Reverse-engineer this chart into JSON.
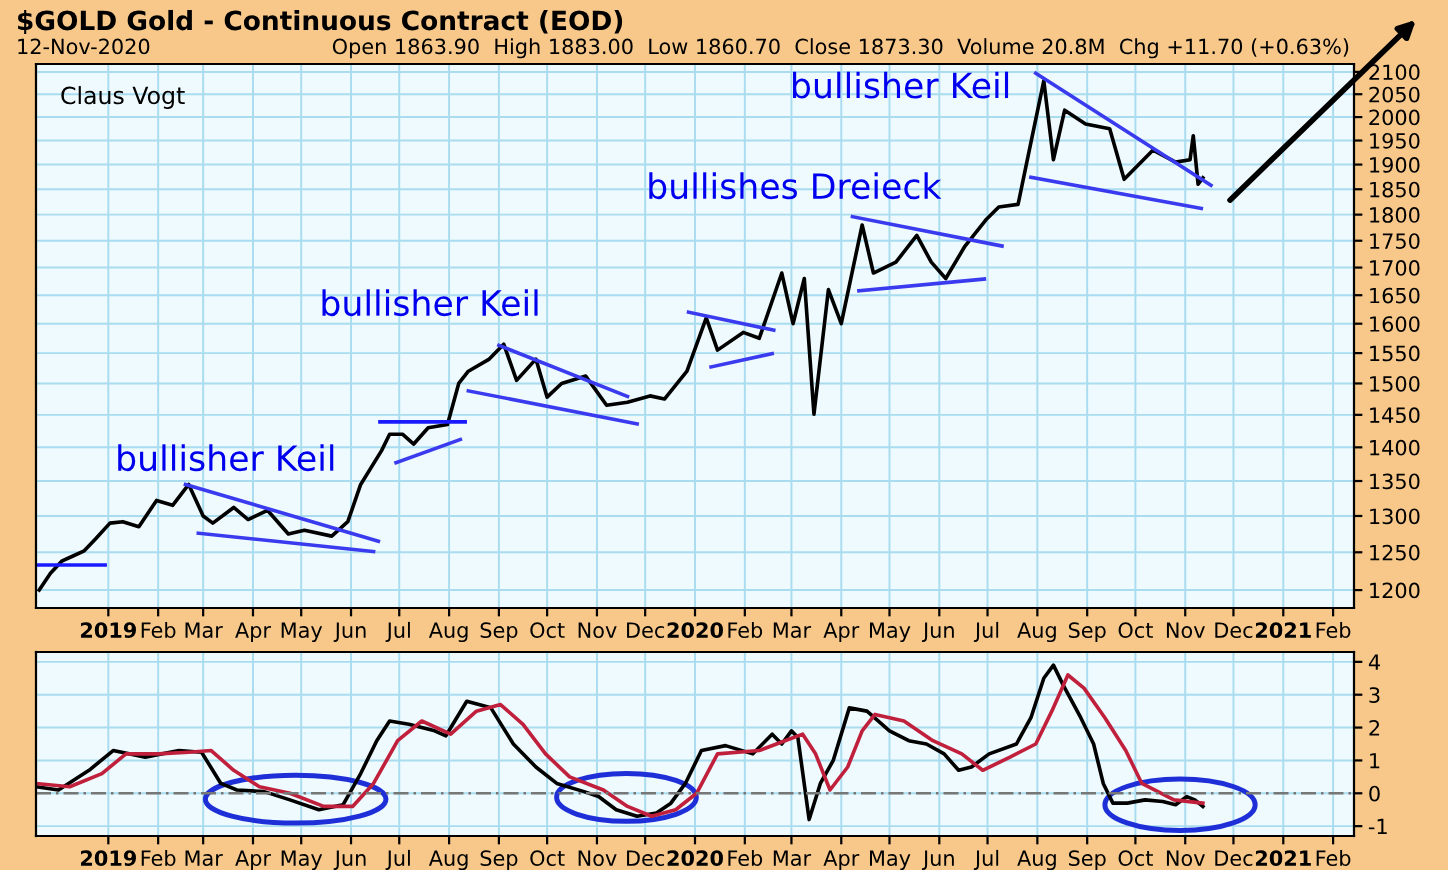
{
  "chart_data": [
    {
      "type": "line",
      "title": "$GOLD Gold - Continuous Contract (EOD)",
      "subtitle": "12-Nov-2020",
      "annotations": [
        "Open 1863.90  High 1883.00  Low 1860.70  Close 1873.30  Volume 20.8M  Chg +11.70 (+0.63%)",
        "Claus Vogt",
        "bullisher Keil",
        "bullisher Keil",
        "bullishes Dreieck",
        "bullisher Keil"
      ],
      "log": "y",
      "grid": true,
      "legend": false,
      "line_style": "solid",
      "marker": "none",
      "xlim": [
        "2018-11-17",
        "2021-02-14"
      ],
      "xticks": [
        {
          "value": "2019-01",
          "label": "2019"
        },
        {
          "value": "2019-02",
          "label": "Feb"
        },
        {
          "value": "2019-03",
          "label": "Mar"
        },
        {
          "value": "2019-04",
          "label": "Apr"
        },
        {
          "value": "2019-05",
          "label": "May"
        },
        {
          "value": "2019-06",
          "label": "Jun"
        },
        {
          "value": "2019-07",
          "label": "Jul"
        },
        {
          "value": "2019-08",
          "label": "Aug"
        },
        {
          "value": "2019-09",
          "label": "Sep"
        },
        {
          "value": "2019-10",
          "label": "Oct"
        },
        {
          "value": "2019-11",
          "label": "Nov"
        },
        {
          "value": "2019-12",
          "label": "Dec"
        },
        {
          "value": "2020-01",
          "label": "2020"
        },
        {
          "value": "2020-02",
          "label": "Feb"
        },
        {
          "value": "2020-03",
          "label": "Mar"
        },
        {
          "value": "2020-04",
          "label": "Apr"
        },
        {
          "value": "2020-05",
          "label": "May"
        },
        {
          "value": "2020-06",
          "label": "Jun"
        },
        {
          "value": "2020-07",
          "label": "Jul"
        },
        {
          "value": "2020-08",
          "label": "Aug"
        },
        {
          "value": "2020-09",
          "label": "Sep"
        },
        {
          "value": "2020-10",
          "label": "Oct"
        },
        {
          "value": "2020-11",
          "label": "Nov"
        },
        {
          "value": "2020-12",
          "label": "Dec"
        },
        {
          "value": "2021-01",
          "label": "2021"
        },
        {
          "value": "2021-02",
          "label": "Feb"
        }
      ],
      "ylim": [
        1177,
        2118
      ],
      "yticks": [
        1200,
        1250,
        1300,
        1350,
        1400,
        1450,
        1500,
        1550,
        1600,
        1650,
        1700,
        1750,
        1800,
        1850,
        1900,
        1950,
        2000,
        2050,
        2100
      ],
      "series": [
        {
          "color": "#000000",
          "x": [
            "2018-11-19",
            "2018-11-26",
            "2018-12-03",
            "2018-12-10",
            "2018-12-17",
            "2018-12-24",
            "2019-01-02",
            "2019-01-10",
            "2019-01-20",
            "2019-01-31",
            "2019-02-10",
            "2019-02-20",
            "2019-03-01",
            "2019-03-07",
            "2019-03-20",
            "2019-03-29",
            "2019-04-10",
            "2019-04-23",
            "2019-05-03",
            "2019-05-20",
            "2019-05-30",
            "2019-06-07",
            "2019-06-20",
            "2019-06-25",
            "2019-07-03",
            "2019-07-10",
            "2019-07-19",
            "2019-07-31",
            "2019-08-07",
            "2019-08-13",
            "2019-08-26",
            "2019-09-04",
            "2019-09-12",
            "2019-09-24",
            "2019-10-01",
            "2019-10-10",
            "2019-10-25",
            "2019-11-07",
            "2019-11-20",
            "2019-12-04",
            "2019-12-13",
            "2019-12-27",
            "2020-01-08",
            "2020-01-15",
            "2020-01-31",
            "2020-02-10",
            "2020-02-24",
            "2020-03-02",
            "2020-03-09",
            "2020-03-15",
            "2020-03-24",
            "2020-04-01",
            "2020-04-14",
            "2020-04-21",
            "2020-05-05",
            "2020-05-18",
            "2020-05-27",
            "2020-06-05",
            "2020-06-17",
            "2020-06-30",
            "2020-07-08",
            "2020-07-20",
            "2020-07-27",
            "2020-08-05",
            "2020-08-11",
            "2020-08-18",
            "2020-08-31",
            "2020-09-15",
            "2020-09-24",
            "2020-10-12",
            "2020-10-26",
            "2020-11-04",
            "2020-11-06",
            "2020-11-09",
            "2020-11-12"
          ],
          "values": [
            1200,
            1222,
            1238,
            1245,
            1252,
            1268,
            1290,
            1292,
            1285,
            1322,
            1315,
            1345,
            1300,
            1290,
            1312,
            1295,
            1308,
            1275,
            1280,
            1272,
            1292,
            1345,
            1395,
            1420,
            1420,
            1405,
            1430,
            1435,
            1500,
            1520,
            1540,
            1565,
            1505,
            1540,
            1478,
            1500,
            1512,
            1465,
            1470,
            1480,
            1475,
            1520,
            1610,
            1555,
            1585,
            1575,
            1690,
            1600,
            1680,
            1451,
            1660,
            1600,
            1780,
            1690,
            1710,
            1760,
            1710,
            1680,
            1740,
            1790,
            1815,
            1820,
            1930,
            2080,
            1910,
            2015,
            1985,
            1975,
            1870,
            1930,
            1905,
            1910,
            1960,
            1860,
            1873
          ]
        },
        {
          "color": "#1a1aff",
          "x": [
            "2018-11-17",
            "2018-12-30"
          ],
          "values": [
            1233,
            1233
          ]
        },
        {
          "color": "#3a3aee",
          "x": [
            "2019-02-18",
            "2019-06-18"
          ],
          "values": [
            1345,
            1265
          ]
        },
        {
          "color": "#3a3aee",
          "x": [
            "2019-02-26",
            "2019-06-15"
          ],
          "values": [
            1276,
            1251
          ]
        },
        {
          "color": "#1a1aff",
          "x": [
            "2019-06-19",
            "2019-08-11"
          ],
          "values": [
            1439,
            1439
          ]
        },
        {
          "color": "#3a3aee",
          "x": [
            "2019-06-29",
            "2019-08-08"
          ],
          "values": [
            1377,
            1412
          ]
        },
        {
          "color": "#3a3aee",
          "x": [
            "2019-09-01",
            "2019-11-20"
          ],
          "values": [
            1563,
            1479
          ]
        },
        {
          "color": "#3a3aee",
          "x": [
            "2019-08-13",
            "2019-11-26"
          ],
          "values": [
            1488,
            1436
          ]
        },
        {
          "color": "#3a3aee",
          "x": [
            "2019-12-28",
            "2020-02-19"
          ],
          "values": [
            1620,
            1589
          ]
        },
        {
          "color": "#3a3aee",
          "x": [
            "2020-01-11",
            "2020-02-18"
          ],
          "values": [
            1527,
            1549
          ]
        },
        {
          "color": "#3a3aee",
          "x": [
            "2020-04-08",
            "2020-07-10"
          ],
          "values": [
            1796,
            1740
          ]
        },
        {
          "color": "#3a3aee",
          "x": [
            "2020-04-12",
            "2020-06-29"
          ],
          "values": [
            1658,
            1679
          ]
        },
        {
          "color": "#3a3aee",
          "x": [
            "2020-07-31",
            "2020-11-17"
          ],
          "values": [
            2097,
            1858
          ]
        },
        {
          "color": "#3a3aee",
          "x": [
            "2020-07-28",
            "2020-11-11"
          ],
          "values": [
            1874,
            1812
          ]
        }
      ]
    },
    {
      "type": "line",
      "grid": true,
      "legend": false,
      "line_style": "solid",
      "marker": "none",
      "xlim": [
        "2018-11-17",
        "2021-02-14"
      ],
      "xticks": [
        {
          "value": "2019-01",
          "label": "2019"
        },
        {
          "value": "2019-02",
          "label": "Feb"
        },
        {
          "value": "2019-03",
          "label": "Mar"
        },
        {
          "value": "2019-04",
          "label": "Apr"
        },
        {
          "value": "2019-05",
          "label": "May"
        },
        {
          "value": "2019-06",
          "label": "Jun"
        },
        {
          "value": "2019-07",
          "label": "Jul"
        },
        {
          "value": "2019-08",
          "label": "Aug"
        },
        {
          "value": "2019-09",
          "label": "Sep"
        },
        {
          "value": "2019-10",
          "label": "Oct"
        },
        {
          "value": "2019-11",
          "label": "Nov"
        },
        {
          "value": "2019-12",
          "label": "Dec"
        },
        {
          "value": "2020-01",
          "label": "2020"
        },
        {
          "value": "2020-02",
          "label": "Feb"
        },
        {
          "value": "2020-03",
          "label": "Mar"
        },
        {
          "value": "2020-04",
          "label": "Apr"
        },
        {
          "value": "2020-05",
          "label": "May"
        },
        {
          "value": "2020-06",
          "label": "Jun"
        },
        {
          "value": "2020-07",
          "label": "Jul"
        },
        {
          "value": "2020-08",
          "label": "Aug"
        },
        {
          "value": "2020-09",
          "label": "Sep"
        },
        {
          "value": "2020-10",
          "label": "Oct"
        },
        {
          "value": "2020-11",
          "label": "Nov"
        },
        {
          "value": "2020-12",
          "label": "Dec"
        },
        {
          "value": "2021-01",
          "label": "2021"
        },
        {
          "value": "2021-02",
          "label": "Feb"
        }
      ],
      "ylim": [
        -1.3,
        4.3
      ],
      "yticks": [
        -1,
        0,
        1,
        2,
        3,
        4
      ],
      "ref_lines": [
        {
          "axis": "y",
          "value": 0,
          "color": "#777777",
          "line_style": "dashed"
        }
      ],
      "series": [
        {
          "color": "#000000",
          "x": [
            "2018-11-17",
            "2018-12-01",
            "2018-12-20",
            "2019-01-04",
            "2019-01-24",
            "2019-02-14",
            "2019-02-28",
            "2019-03-12",
            "2019-03-22",
            "2019-04-08",
            "2019-04-24",
            "2019-05-12",
            "2019-05-27",
            "2019-06-07",
            "2019-06-17",
            "2019-06-25",
            "2019-07-07",
            "2019-07-23",
            "2019-07-30",
            "2019-08-12",
            "2019-08-27",
            "2019-09-10",
            "2019-09-24",
            "2019-10-07",
            "2019-10-24",
            "2019-11-02",
            "2019-11-13",
            "2019-11-26",
            "2019-12-08",
            "2019-12-17",
            "2019-12-26",
            "2020-01-05",
            "2020-01-20",
            "2020-02-06",
            "2020-02-18",
            "2020-02-24",
            "2020-03-01",
            "2020-03-05",
            "2020-03-12",
            "2020-03-19",
            "2020-03-27",
            "2020-04-06",
            "2020-04-17",
            "2020-05-01",
            "2020-05-13",
            "2020-05-24",
            "2020-06-04",
            "2020-06-13",
            "2020-06-21",
            "2020-07-02",
            "2020-07-19",
            "2020-07-28",
            "2020-08-05",
            "2020-08-11",
            "2020-08-17",
            "2020-08-28",
            "2020-09-05",
            "2020-09-11",
            "2020-09-17",
            "2020-09-26",
            "2020-10-07",
            "2020-10-18",
            "2020-10-26",
            "2020-11-02",
            "2020-11-07",
            "2020-11-12"
          ],
          "values": [
            0.2,
            0.1,
            0.7,
            1.3,
            1.1,
            1.3,
            1.25,
            0.3,
            0.1,
            0.05,
            -0.2,
            -0.5,
            -0.35,
            0.6,
            1.6,
            2.2,
            2.1,
            1.9,
            1.75,
            2.8,
            2.6,
            1.5,
            0.8,
            0.3,
            0.05,
            -0.1,
            -0.5,
            -0.7,
            -0.6,
            -0.3,
            0.3,
            1.3,
            1.45,
            1.2,
            1.8,
            1.5,
            1.9,
            1.7,
            -0.8,
            0.3,
            1.0,
            2.6,
            2.5,
            1.9,
            1.6,
            1.5,
            1.2,
            0.7,
            0.8,
            1.2,
            1.5,
            2.3,
            3.5,
            3.9,
            3.3,
            2.3,
            1.5,
            0.3,
            -0.3,
            -0.3,
            -0.2,
            -0.25,
            -0.35,
            -0.1,
            -0.2,
            -0.4
          ]
        },
        {
          "color": "#c0203c",
          "x": [
            "2018-11-17",
            "2018-12-08",
            "2018-12-28",
            "2019-01-12",
            "2019-02-01",
            "2019-02-20",
            "2019-03-06",
            "2019-03-20",
            "2019-04-05",
            "2019-04-24",
            "2019-05-15",
            "2019-06-02",
            "2019-06-15",
            "2019-06-30",
            "2019-07-15",
            "2019-08-02",
            "2019-08-18",
            "2019-09-02",
            "2019-09-16",
            "2019-09-30",
            "2019-10-15",
            "2019-11-05",
            "2019-11-20",
            "2019-12-05",
            "2019-12-20",
            "2020-01-02",
            "2020-01-15",
            "2020-02-10",
            "2020-02-26",
            "2020-03-08",
            "2020-03-16",
            "2020-03-25",
            "2020-04-05",
            "2020-04-14",
            "2020-04-22",
            "2020-05-10",
            "2020-05-28",
            "2020-06-15",
            "2020-06-28",
            "2020-07-15",
            "2020-07-31",
            "2020-08-10",
            "2020-08-20",
            "2020-08-30",
            "2020-09-12",
            "2020-09-25",
            "2020-10-05",
            "2020-10-25",
            "2020-11-12"
          ],
          "values": [
            0.3,
            0.2,
            0.6,
            1.2,
            1.2,
            1.25,
            1.3,
            0.7,
            0.2,
            0.0,
            -0.4,
            -0.4,
            0.3,
            1.6,
            2.2,
            1.8,
            2.5,
            2.7,
            2.1,
            1.2,
            0.5,
            0.1,
            -0.4,
            -0.7,
            -0.5,
            0.0,
            1.2,
            1.3,
            1.6,
            1.8,
            1.2,
            0.1,
            0.8,
            1.9,
            2.4,
            2.2,
            1.6,
            1.2,
            0.7,
            1.1,
            1.5,
            2.5,
            3.6,
            3.2,
            2.3,
            1.3,
            0.3,
            -0.2,
            -0.3
          ]
        }
      ]
    }
  ]
}
